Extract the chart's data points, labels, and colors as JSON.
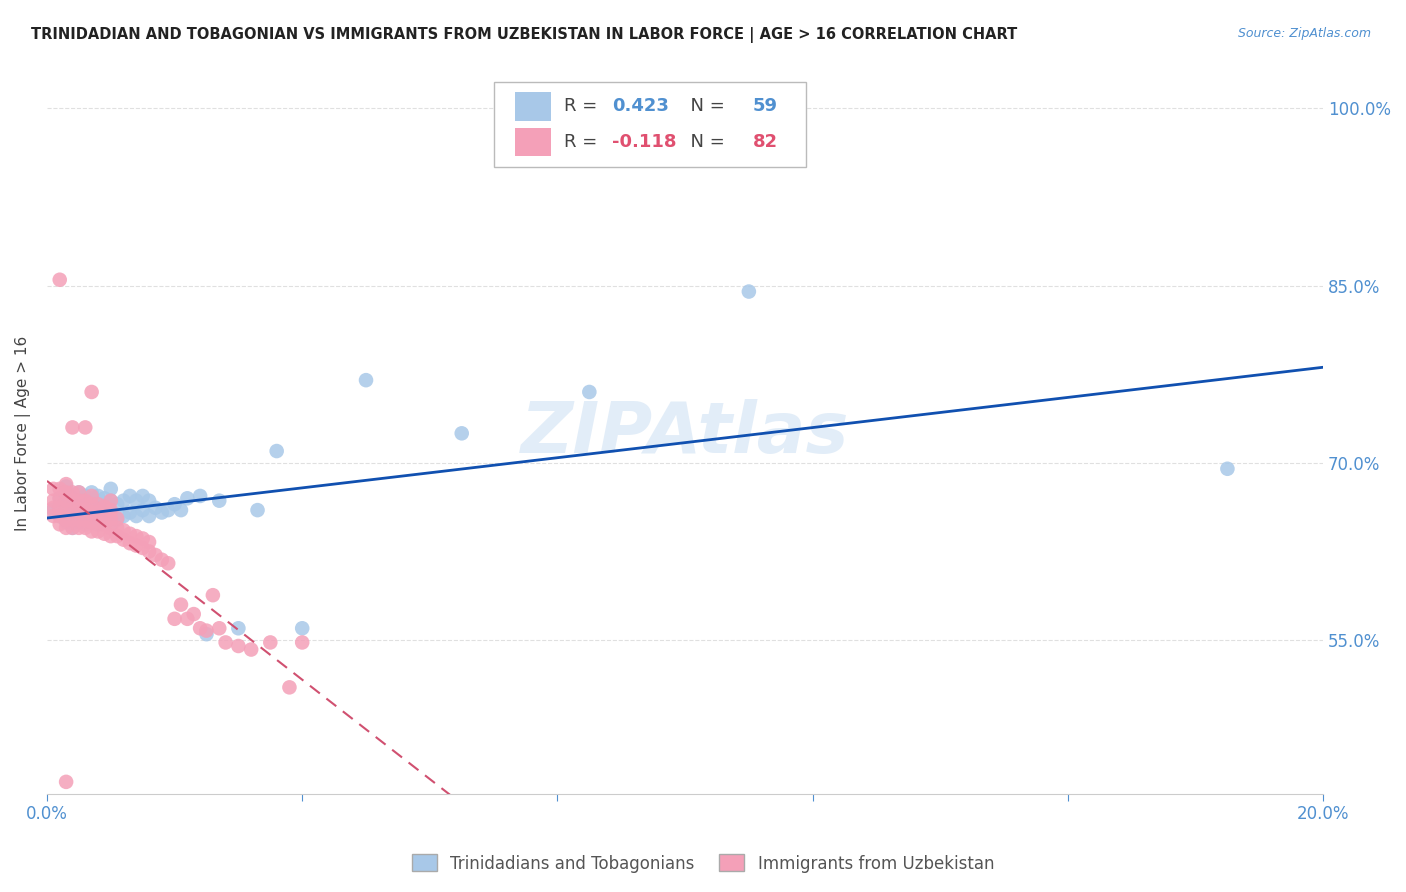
{
  "title": "TRINIDADIAN AND TOBAGONIAN VS IMMIGRANTS FROM UZBEKISTAN IN LABOR FORCE | AGE > 16 CORRELATION CHART",
  "source": "Source: ZipAtlas.com",
  "ylabel": "In Labor Force | Age > 16",
  "xlim": [
    0.0,
    0.2
  ],
  "ylim": [
    0.42,
    1.03
  ],
  "ytick_positions": [
    0.55,
    0.7,
    0.85,
    1.0
  ],
  "ytick_labels": [
    "55.0%",
    "70.0%",
    "85.0%",
    "100.0%"
  ],
  "blue_R": 0.423,
  "blue_N": 59,
  "pink_R": -0.118,
  "pink_N": 82,
  "blue_color": "#a8c8e8",
  "pink_color": "#f4a0b8",
  "blue_line_color": "#1050b0",
  "pink_line_color": "#d05070",
  "legend1_label": "Trinidadians and Tobagonians",
  "legend2_label": "Immigrants from Uzbekistan",
  "watermark": "ZIPAtlas",
  "blue_scatter_x": [
    0.001,
    0.002,
    0.002,
    0.003,
    0.003,
    0.003,
    0.004,
    0.004,
    0.004,
    0.005,
    0.005,
    0.005,
    0.005,
    0.006,
    0.006,
    0.006,
    0.007,
    0.007,
    0.007,
    0.008,
    0.008,
    0.008,
    0.009,
    0.009,
    0.009,
    0.01,
    0.01,
    0.01,
    0.01,
    0.011,
    0.011,
    0.012,
    0.012,
    0.013,
    0.013,
    0.014,
    0.014,
    0.015,
    0.015,
    0.016,
    0.016,
    0.017,
    0.018,
    0.019,
    0.02,
    0.021,
    0.022,
    0.024,
    0.025,
    0.027,
    0.03,
    0.033,
    0.036,
    0.04,
    0.05,
    0.065,
    0.085,
    0.11,
    0.185
  ],
  "blue_scatter_y": [
    0.66,
    0.655,
    0.67,
    0.65,
    0.665,
    0.68,
    0.645,
    0.66,
    0.67,
    0.65,
    0.658,
    0.668,
    0.675,
    0.648,
    0.66,
    0.672,
    0.65,
    0.663,
    0.675,
    0.648,
    0.66,
    0.672,
    0.65,
    0.66,
    0.67,
    0.648,
    0.658,
    0.668,
    0.678,
    0.652,
    0.665,
    0.655,
    0.668,
    0.658,
    0.672,
    0.655,
    0.668,
    0.66,
    0.672,
    0.655,
    0.668,
    0.662,
    0.658,
    0.66,
    0.665,
    0.66,
    0.67,
    0.672,
    0.555,
    0.668,
    0.56,
    0.66,
    0.71,
    0.56,
    0.77,
    0.725,
    0.76,
    0.845,
    0.695
  ],
  "pink_scatter_x": [
    0.001,
    0.001,
    0.001,
    0.001,
    0.002,
    0.002,
    0.002,
    0.002,
    0.002,
    0.003,
    0.003,
    0.003,
    0.003,
    0.003,
    0.003,
    0.004,
    0.004,
    0.004,
    0.004,
    0.004,
    0.004,
    0.005,
    0.005,
    0.005,
    0.005,
    0.005,
    0.006,
    0.006,
    0.006,
    0.006,
    0.006,
    0.007,
    0.007,
    0.007,
    0.007,
    0.007,
    0.007,
    0.008,
    0.008,
    0.008,
    0.008,
    0.009,
    0.009,
    0.009,
    0.009,
    0.01,
    0.01,
    0.01,
    0.01,
    0.01,
    0.011,
    0.011,
    0.011,
    0.012,
    0.012,
    0.013,
    0.013,
    0.014,
    0.014,
    0.015,
    0.015,
    0.016,
    0.016,
    0.017,
    0.018,
    0.019,
    0.02,
    0.021,
    0.022,
    0.023,
    0.024,
    0.025,
    0.026,
    0.027,
    0.028,
    0.03,
    0.032,
    0.035,
    0.038,
    0.04,
    0.002,
    0.003
  ],
  "pink_scatter_y": [
    0.655,
    0.662,
    0.668,
    0.678,
    0.648,
    0.655,
    0.662,
    0.67,
    0.678,
    0.645,
    0.652,
    0.66,
    0.668,
    0.675,
    0.682,
    0.645,
    0.652,
    0.66,
    0.668,
    0.675,
    0.73,
    0.645,
    0.652,
    0.66,
    0.668,
    0.675,
    0.645,
    0.652,
    0.66,
    0.668,
    0.73,
    0.642,
    0.65,
    0.658,
    0.665,
    0.672,
    0.76,
    0.642,
    0.65,
    0.658,
    0.665,
    0.64,
    0.648,
    0.655,
    0.663,
    0.638,
    0.645,
    0.653,
    0.66,
    0.668,
    0.638,
    0.645,
    0.653,
    0.635,
    0.643,
    0.632,
    0.64,
    0.63,
    0.638,
    0.628,
    0.636,
    0.625,
    0.633,
    0.622,
    0.618,
    0.615,
    0.568,
    0.58,
    0.568,
    0.572,
    0.56,
    0.558,
    0.588,
    0.56,
    0.548,
    0.545,
    0.542,
    0.548,
    0.51,
    0.548,
    0.855,
    0.43
  ],
  "background_color": "#ffffff",
  "grid_color": "#e0e0e0"
}
